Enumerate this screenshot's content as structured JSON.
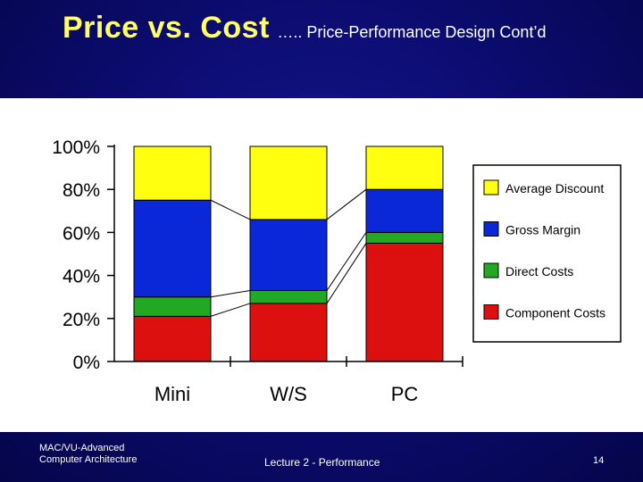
{
  "slide": {
    "title_main": "Price vs. Cost",
    "title_sub": "….. Price-Performance Design Cont’d",
    "footer_left": "MAC/VU-Advanced Computer Architecture",
    "footer_center": "Lecture 2 - Performance",
    "page_number": "14"
  },
  "chart_data": {
    "type": "bar",
    "stacked": true,
    "categories": [
      "Mini",
      "W/S",
      "PC"
    ],
    "series": [
      {
        "name": "Component Costs",
        "color": "#dd1010",
        "values": [
          21,
          27,
          55
        ]
      },
      {
        "name": "Direct Costs",
        "color": "#22a822",
        "values": [
          9,
          6,
          5
        ]
      },
      {
        "name": "Gross Margin",
        "color": "#0a28d8",
        "values": [
          45,
          33,
          20
        ]
      },
      {
        "name": "Average Discount",
        "color": "#ffff10",
        "values": [
          25,
          34,
          20
        ]
      }
    ],
    "legend_order": [
      "Average Discount",
      "Gross Margin",
      "Direct Costs",
      "Component Costs"
    ],
    "yticks": [
      "0%",
      "20%",
      "40%",
      "60%",
      "80%",
      "100%"
    ],
    "ylim": [
      0,
      100
    ],
    "legend_position": "right",
    "connector_lines": true
  }
}
